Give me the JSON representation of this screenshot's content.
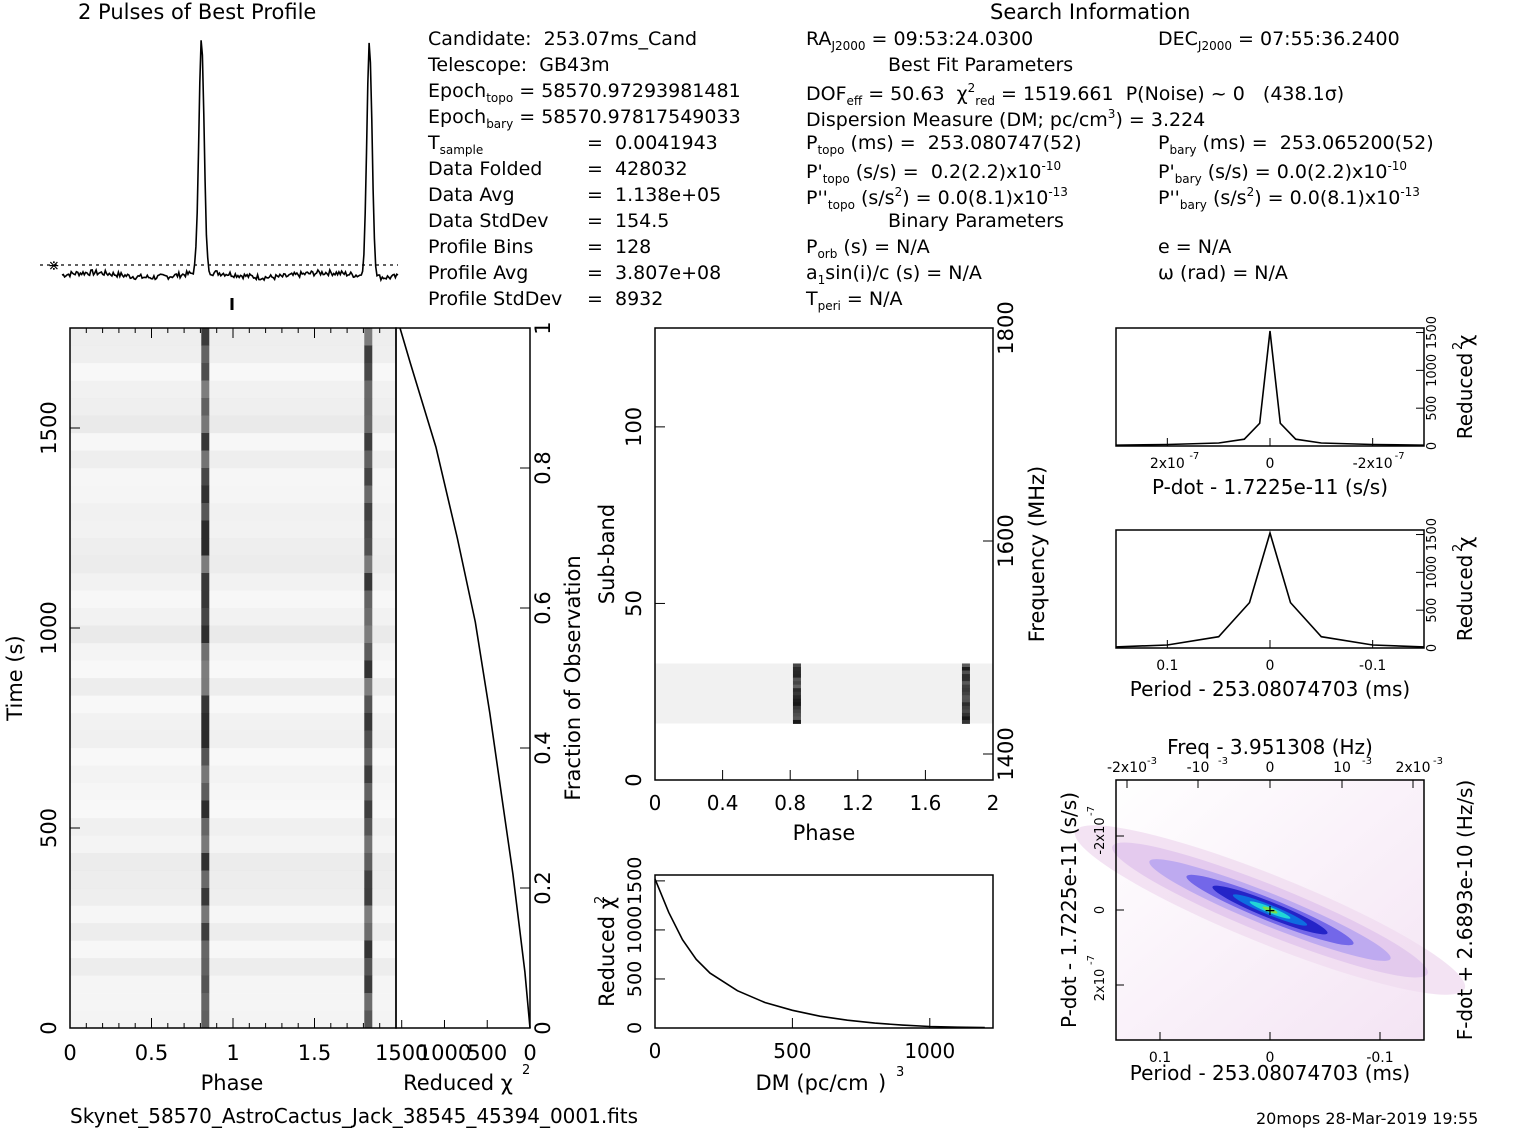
{
  "profile": {
    "title": "2 Pulses of Best Profile"
  },
  "search": {
    "title": "Search Information",
    "ra": "09:53:24.0300",
    "dec": "07:55:36.2400"
  },
  "candidate": {
    "rows": [
      {
        "label": "Candidate:",
        "value": "253.07ms_Cand"
      },
      {
        "label": "Telescope:",
        "value": "GB43m"
      },
      {
        "label": "Epoch_topo",
        "value": "58570.97293981481"
      },
      {
        "label": "Epoch_bary",
        "value": "58570.97817549033"
      },
      {
        "label": "T_sample",
        "value": "0.0041943"
      },
      {
        "label": "Data Folded",
        "value": "428032"
      },
      {
        "label": "Data Avg",
        "value": "1.138e+05"
      },
      {
        "label": "Data StdDev",
        "value": "154.5"
      },
      {
        "label": "Profile Bins",
        "value": "128"
      },
      {
        "label": "Profile Avg",
        "value": "3.807e+08"
      },
      {
        "label": "Profile StdDev",
        "value": "8932"
      }
    ]
  },
  "bestfit": {
    "title": "Best Fit Parameters",
    "dof_eff": "50.63",
    "chi2_red": "1519.661",
    "p_noise": "P(Noise) ~ 0",
    "sigma": "(438.1σ)",
    "dm_label": "Dispersion Measure (DM; pc/cm",
    "dm_value": "3.224",
    "p_topo": "253.080747(52)",
    "p_bary": "253.065200(52)",
    "pd_topo": "0.2(2.2)x10",
    "pd_bary": "0.0(2.2)x10",
    "pd_exp": "-10",
    "pdd_topo": "0.0(8.1)x10",
    "pdd_bary": "0.0(8.1)x10",
    "pdd_exp": "-13"
  },
  "binary": {
    "title": "Binary Parameters",
    "p_orb": "N/A",
    "e": "N/A",
    "a1": "N/A",
    "omega": "N/A",
    "t_peri": "N/A"
  },
  "footer": {
    "filename": "Skynet_58570_AstroCactus_Jack_38545_45394_0001.fits",
    "stamp": "20mops 28-Mar-2019 19:55"
  },
  "chart_data": [
    {
      "type": "line",
      "name": "profile",
      "x": [
        0,
        0.8,
        0.83,
        0.86,
        1.0,
        1.8,
        1.83,
        1.86,
        2.0
      ],
      "y": [
        0.0,
        0.05,
        1.0,
        0.05,
        0.0,
        0.05,
        1.0,
        0.05,
        0.0
      ]
    },
    {
      "type": "heatmap",
      "name": "time-phase",
      "xlabel": "Phase",
      "ylabel": "Time (s)",
      "xlim": [
        0,
        2
      ],
      "ylim": [
        0,
        1750
      ],
      "xticks": [
        "0",
        "0.5",
        "1",
        "1.5"
      ],
      "yticks": [
        "0",
        "500",
        "1000",
        "1500"
      ],
      "pulse_phases": [
        0.83,
        1.83
      ]
    },
    {
      "type": "line",
      "name": "reduced-chi2-vs-time",
      "xlabel": "Reduced χ",
      "y2label": "Fraction of Observation",
      "xticks": [
        "1500",
        "1000",
        "500",
        "0"
      ],
      "y2ticks": [
        "0",
        "0.2",
        "0.4",
        "0.6",
        "0.8",
        "1"
      ],
      "x": [
        0,
        60,
        130,
        200,
        330,
        470,
        640,
        850,
        1100,
        1400,
        1520
      ],
      "y": [
        0.0,
        0.08,
        0.15,
        0.22,
        0.33,
        0.45,
        0.58,
        0.7,
        0.83,
        0.95,
        1.0
      ]
    },
    {
      "type": "heatmap",
      "name": "subband-phase",
      "xlabel": "Phase",
      "ylabel": "Sub-band",
      "y2label": "Frequency (MHz)",
      "xlim": [
        0,
        2
      ],
      "ylim": [
        0,
        128
      ],
      "xticks": [
        "0",
        "0.4",
        "0.8",
        "1.2",
        "1.6",
        "2"
      ],
      "yticks": [
        "0",
        "50",
        "100"
      ],
      "y2ticks": [
        "1400",
        "1600",
        "1800"
      ],
      "band_range": [
        16,
        33
      ],
      "pulse_phases": [
        0.84,
        1.84
      ]
    },
    {
      "type": "line",
      "name": "dm-curve",
      "xlabel": "DM (pc/cm",
      "ylabel": "Reduced χ",
      "xticks": [
        "0",
        "500",
        "1000"
      ],
      "yticks": [
        "0",
        "500",
        "1000",
        "1500"
      ],
      "x": [
        0,
        50,
        100,
        150,
        200,
        300,
        400,
        500,
        600,
        700,
        800,
        900,
        1000,
        1100,
        1200
      ],
      "y": [
        1520,
        1180,
        900,
        700,
        560,
        380,
        260,
        180,
        120,
        80,
        50,
        30,
        15,
        8,
        4
      ]
    },
    {
      "type": "line",
      "name": "pdot-curve",
      "xlabel": "P-dot - 1.7225e-11 (s/s)",
      "y2label": "Reduced χ",
      "xticks": [
        "2x10",
        "0",
        "-2x10"
      ],
      "xtick_exp": "-7",
      "y2ticks": [
        "0",
        "500",
        "1000",
        "1500"
      ],
      "x": [
        -3,
        -2,
        -1,
        -0.5,
        -0.2,
        0,
        0.2,
        0.5,
        1,
        2,
        3
      ],
      "y": [
        10,
        20,
        40,
        90,
        300,
        1520,
        300,
        90,
        40,
        20,
        10
      ]
    },
    {
      "type": "line",
      "name": "period-curve",
      "xlabel": "Period - 253.08074703 (ms)",
      "y2label": "Reduced χ",
      "xticks": [
        "0.1",
        "0",
        "-0.1"
      ],
      "y2ticks": [
        "0",
        "500",
        "1000",
        "1500"
      ],
      "x": [
        -0.15,
        -0.1,
        -0.05,
        -0.02,
        0,
        0.02,
        0.05,
        0.1,
        0.15
      ],
      "y": [
        15,
        40,
        150,
        600,
        1520,
        600,
        150,
        40,
        15
      ]
    },
    {
      "type": "heatmap",
      "name": "period-pdot",
      "title": "Freq - 3.951308 (Hz)",
      "xlabel": "Period - 253.08074703 (ms)",
      "ylabel": "P-dot - 1.7225e-11 (s/s)",
      "y2label": "F-dot + 2.6893e-10 (Hz/s)",
      "xticks": [
        "0.1",
        "0",
        "-0.1"
      ],
      "x2ticks": [
        "-2x10",
        "-10",
        "0",
        "10",
        "2x10"
      ],
      "x2tick_exp": "-3",
      "yticks": [
        "-2x10",
        "0",
        "2x10"
      ],
      "ytick_exp": "-7"
    }
  ]
}
